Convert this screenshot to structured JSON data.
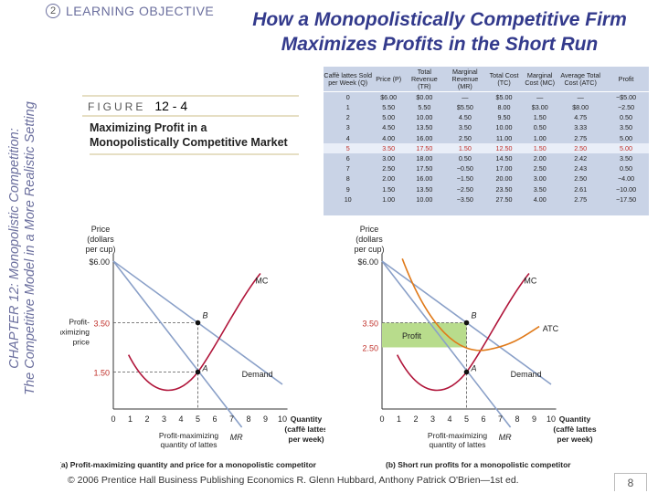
{
  "sidebar": {
    "line1": "CHAPTER 12: Monopolistic Competition:",
    "line2": "The Competitive Model in a More Realistic Setting"
  },
  "learning_objective": {
    "number": "2",
    "label": "LEARNING OBJECTIVE"
  },
  "title": {
    "line1": "How a Monopolistically Competitive Firm",
    "line2": "Maximizes Profits in the Short Run"
  },
  "figure": {
    "word": "FIGURE",
    "number": "12 - 4",
    "caption": "Maximizing Profit in a Monopolistically Competitive Market"
  },
  "table": {
    "headers": [
      "Caffè lattes Sold per Week (Q)",
      "Price (P)",
      "Total Revenue (TR)",
      "Marginal Revenue (MR)",
      "Total Cost (TC)",
      "Marginal Cost (MC)",
      "Average Total Cost (ATC)",
      "Profit"
    ],
    "rows": [
      [
        "0",
        "$6.00",
        "$0.00",
        "—",
        "$5.00",
        "—",
        "—",
        "−$5.00"
      ],
      [
        "1",
        "5.50",
        "5.50",
        "$5.50",
        "8.00",
        "$3.00",
        "$8.00",
        "−2.50"
      ],
      [
        "2",
        "5.00",
        "10.00",
        "4.50",
        "9.50",
        "1.50",
        "4.75",
        "0.50"
      ],
      [
        "3",
        "4.50",
        "13.50",
        "3.50",
        "10.00",
        "0.50",
        "3.33",
        "3.50"
      ],
      [
        "4",
        "4.00",
        "16.00",
        "2.50",
        "11.00",
        "1.00",
        "2.75",
        "5.00"
      ],
      [
        "5",
        "3.50",
        "17.50",
        "1.50",
        "12.50",
        "1.50",
        "2.50",
        "5.00"
      ],
      [
        "6",
        "3.00",
        "18.00",
        "0.50",
        "14.50",
        "2.00",
        "2.42",
        "3.50"
      ],
      [
        "7",
        "2.50",
        "17.50",
        "−0.50",
        "17.00",
        "2.50",
        "2.43",
        "0.50"
      ],
      [
        "8",
        "2.00",
        "16.00",
        "−1.50",
        "20.00",
        "3.00",
        "2.50",
        "−4.00"
      ],
      [
        "9",
        "1.50",
        "13.50",
        "−2.50",
        "23.50",
        "3.50",
        "2.61",
        "−10.00"
      ],
      [
        "10",
        "1.00",
        "10.00",
        "−3.50",
        "27.50",
        "4.00",
        "2.75",
        "−17.50"
      ]
    ],
    "highlight_row": 5
  },
  "graph_a": {
    "y_label": [
      "Price",
      "(dollars",
      "per cup)"
    ],
    "y_top": "$6.00",
    "price_label": [
      "Profit-",
      "maximizing",
      "price"
    ],
    "price_value": "3.50",
    "low_value": "1.50",
    "mc_label": "MC",
    "demand_label": "Demand",
    "mr_label": "MR",
    "point_b": "B",
    "point_a": "A",
    "x_ticks": [
      "0",
      "1",
      "2",
      "3",
      "4",
      "5",
      "6",
      "7",
      "8",
      "9",
      "10"
    ],
    "x_label": [
      "Quantity",
      "(caffè lattes",
      "per week)"
    ],
    "qty_label": [
      "Profit-maximizing",
      "quantity of lattes"
    ],
    "caption": "(a) Profit-maximizing quantity and price for a monopolistic competitor"
  },
  "graph_b": {
    "y_label": [
      "Price",
      "(dollars",
      "per cup)"
    ],
    "y_top": "$6.00",
    "price_value": "3.50",
    "atc_value": "2.50",
    "profit_label": "Profit",
    "mc_label": "MC",
    "atc_label": "ATC",
    "demand_label": "Demand",
    "mr_label": "MR",
    "point_b": "B",
    "point_a": "A",
    "x_ticks": [
      "0",
      "1",
      "2",
      "3",
      "4",
      "5",
      "6",
      "7",
      "8",
      "9",
      "10"
    ],
    "x_label": [
      "Quantity",
      "(caffè lattes",
      "per week)"
    ],
    "qty_label": [
      "Profit-maximizing",
      "quantity of lattes"
    ],
    "caption": "(b) Short run profits for a monopolistic competitor"
  },
  "colors": {
    "title": "#333a8c",
    "sidebar": "#6b6f9e",
    "demand_line": "#8aa0c8",
    "mc_curve": "#b0153a",
    "atc_curve": "#e07a1a",
    "profit_box": "#b8dc8c",
    "table_bg": "#c9d3e6",
    "highlight_text": "#c0312b"
  },
  "footer": {
    "text": "© 2006 Prentice Hall Business Publishing   Economics  R. Glenn Hubbard, Anthony Patrick O'Brien—1st ed.",
    "page": "8"
  }
}
